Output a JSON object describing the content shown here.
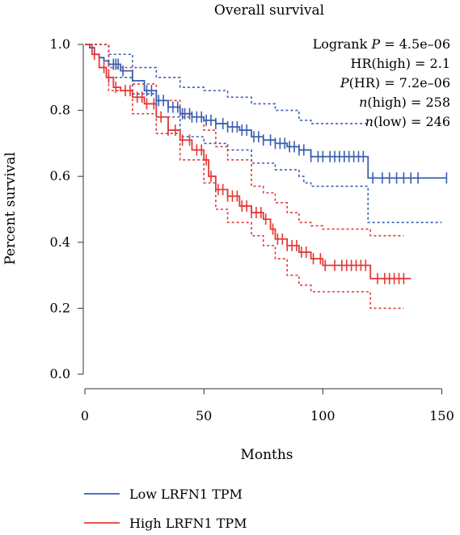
{
  "chart_data": {
    "type": "line",
    "title": "Overall survival",
    "xlabel": "Months",
    "ylabel": "Percent survival",
    "xlim": [
      0,
      155
    ],
    "ylim": [
      0,
      1.0
    ],
    "xticks": [
      0,
      50,
      100,
      150
    ],
    "yticks": [
      0.0,
      0.2,
      0.4,
      0.6,
      0.8,
      1.0
    ],
    "xtick_labels": [
      "0",
      "50",
      "100",
      "150"
    ],
    "ytick_labels": [
      "0.0",
      "0.2",
      "0.4",
      "0.6",
      "0.8",
      "1.0"
    ],
    "annotations": {
      "logrank": {
        "prefix": "Logrank ",
        "var": "P",
        "rest": " = 4.5e–06"
      },
      "hr": {
        "text": "HR(high) = 2.1"
      },
      "phr": {
        "var": "P",
        "rest": "(HR) = 7.2e–06"
      },
      "nhigh": {
        "var": "n",
        "rest": "(high) = 258"
      },
      "nlow": {
        "var": "n",
        "rest": "(low) = 246"
      }
    },
    "legend_position": "bottom",
    "series": [
      {
        "name": "Low LRFN1 TPM",
        "color": "#3a5fb0",
        "points": [
          [
            0,
            1.0
          ],
          [
            2,
            0.99
          ],
          [
            4,
            0.97
          ],
          [
            6,
            0.96
          ],
          [
            8,
            0.95
          ],
          [
            10,
            0.94
          ],
          [
            15,
            0.92
          ],
          [
            20,
            0.89
          ],
          [
            25,
            0.86
          ],
          [
            30,
            0.83
          ],
          [
            35,
            0.81
          ],
          [
            40,
            0.79
          ],
          [
            45,
            0.78
          ],
          [
            50,
            0.77
          ],
          [
            55,
            0.76
          ],
          [
            60,
            0.75
          ],
          [
            65,
            0.74
          ],
          [
            70,
            0.72
          ],
          [
            75,
            0.71
          ],
          [
            80,
            0.7
          ],
          [
            85,
            0.69
          ],
          [
            90,
            0.68
          ],
          [
            95,
            0.66
          ],
          [
            100,
            0.66
          ],
          [
            110,
            0.66
          ],
          [
            119,
            0.66
          ],
          [
            119,
            0.595
          ],
          [
            152,
            0.595
          ]
        ],
        "censor_x": [
          12,
          13,
          14,
          16,
          26,
          28,
          30,
          31,
          33,
          35,
          37,
          39,
          41,
          42,
          44,
          45,
          47,
          49,
          51,
          53,
          55,
          58,
          60,
          62,
          64,
          66,
          68,
          71,
          73,
          75,
          78,
          80,
          82,
          84,
          86,
          88,
          90,
          92,
          95,
          98,
          100,
          103,
          105,
          107,
          109,
          111,
          113,
          115,
          117,
          121,
          125,
          128,
          131,
          134,
          137,
          140,
          152
        ],
        "ci_upper": [
          [
            0,
            1.0
          ],
          [
            10,
            0.97
          ],
          [
            20,
            0.93
          ],
          [
            30,
            0.9
          ],
          [
            40,
            0.87
          ],
          [
            50,
            0.86
          ],
          [
            60,
            0.84
          ],
          [
            70,
            0.82
          ],
          [
            80,
            0.8
          ],
          [
            90,
            0.77
          ],
          [
            95,
            0.76
          ],
          [
            119,
            0.76
          ]
        ],
        "ci_lower": [
          [
            0,
            1.0
          ],
          [
            10,
            0.9
          ],
          [
            20,
            0.85
          ],
          [
            30,
            0.78
          ],
          [
            40,
            0.72
          ],
          [
            50,
            0.7
          ],
          [
            60,
            0.68
          ],
          [
            70,
            0.64
          ],
          [
            80,
            0.62
          ],
          [
            90,
            0.6
          ],
          [
            92,
            0.58
          ],
          [
            95,
            0.57
          ],
          [
            119,
            0.57
          ],
          [
            119,
            0.46
          ],
          [
            150,
            0.46
          ]
        ]
      },
      {
        "name": "High LRFN1 TPM",
        "color": "#e23a36",
        "points": [
          [
            0,
            1.0
          ],
          [
            3,
            0.97
          ],
          [
            6,
            0.93
          ],
          [
            9,
            0.9
          ],
          [
            12,
            0.87
          ],
          [
            15,
            0.86
          ],
          [
            20,
            0.84
          ],
          [
            25,
            0.82
          ],
          [
            30,
            0.78
          ],
          [
            35,
            0.74
          ],
          [
            40,
            0.71
          ],
          [
            45,
            0.68
          ],
          [
            50,
            0.65
          ],
          [
            52,
            0.6
          ],
          [
            55,
            0.56
          ],
          [
            60,
            0.54
          ],
          [
            65,
            0.51
          ],
          [
            70,
            0.49
          ],
          [
            75,
            0.47
          ],
          [
            78,
            0.44
          ],
          [
            80,
            0.41
          ],
          [
            85,
            0.39
          ],
          [
            90,
            0.37
          ],
          [
            95,
            0.35
          ],
          [
            100,
            0.33
          ],
          [
            120,
            0.33
          ],
          [
            120,
            0.29
          ],
          [
            137,
            0.29
          ]
        ],
        "censor_x": [
          4,
          8,
          10,
          13,
          17,
          19,
          22,
          24,
          26,
          29,
          32,
          35,
          38,
          41,
          44,
          47,
          49,
          51,
          53,
          56,
          58,
          60,
          62,
          64,
          66,
          68,
          70,
          72,
          74,
          76,
          79,
          81,
          83,
          85,
          87,
          89,
          91,
          93,
          96,
          99,
          101,
          105,
          108,
          110,
          112,
          114,
          116,
          118,
          123,
          126,
          128,
          130,
          132,
          134
        ],
        "ci_upper": [
          [
            0,
            1.0
          ],
          [
            10,
            0.93
          ],
          [
            20,
            0.88
          ],
          [
            30,
            0.83
          ],
          [
            40,
            0.78
          ],
          [
            50,
            0.74
          ],
          [
            55,
            0.69
          ],
          [
            60,
            0.65
          ],
          [
            70,
            0.57
          ],
          [
            75,
            0.55
          ],
          [
            80,
            0.52
          ],
          [
            85,
            0.49
          ],
          [
            90,
            0.46
          ],
          [
            95,
            0.45
          ],
          [
            100,
            0.44
          ],
          [
            110,
            0.44
          ],
          [
            120,
            0.44
          ],
          [
            120,
            0.42
          ],
          [
            134,
            0.42
          ]
        ],
        "ci_lower": [
          [
            0,
            1.0
          ],
          [
            10,
            0.86
          ],
          [
            20,
            0.79
          ],
          [
            30,
            0.73
          ],
          [
            40,
            0.65
          ],
          [
            50,
            0.58
          ],
          [
            55,
            0.5
          ],
          [
            60,
            0.46
          ],
          [
            70,
            0.42
          ],
          [
            75,
            0.39
          ],
          [
            80,
            0.35
          ],
          [
            85,
            0.3
          ],
          [
            90,
            0.27
          ],
          [
            95,
            0.25
          ],
          [
            100,
            0.25
          ],
          [
            120,
            0.25
          ],
          [
            120,
            0.2
          ],
          [
            134,
            0.2
          ]
        ]
      }
    ]
  }
}
